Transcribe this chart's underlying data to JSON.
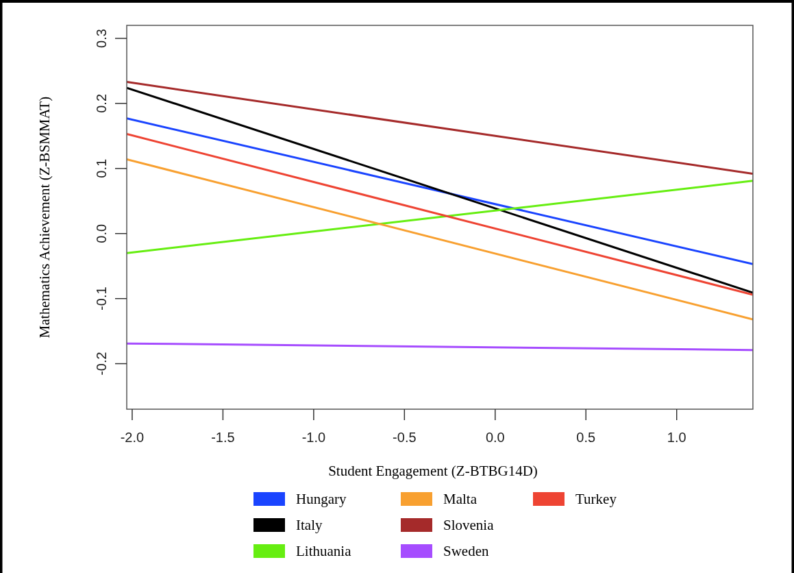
{
  "chart_data": {
    "type": "line",
    "xlabel": "Student Engagement (Z-BTBG14D)",
    "ylabel": "Mathematics Achievement (Z-BSMMAT)",
    "x": [
      -2.03,
      1.42
    ],
    "xlim": [
      -2.03,
      1.42
    ],
    "xticks": [
      {
        "value": -2,
        "label": "-2.0"
      },
      -1.5,
      {
        "value": -1,
        "label": "-1.0"
      },
      -0.5,
      {
        "value": 0,
        "label": "0.0"
      },
      0.5,
      {
        "value": 1,
        "label": "1.0"
      }
    ],
    "ylim": [
      -0.27,
      0.32
    ],
    "yticks": [
      -0.2,
      -0.1,
      {
        "value": 0,
        "label": "0.0"
      },
      0.1,
      0.2,
      0.3
    ],
    "series": [
      {
        "name": "Hungary",
        "color": "#1a44ff",
        "values": [
          0.177,
          -0.047
        ]
      },
      {
        "name": "Italy",
        "color": "#000000",
        "values": [
          0.224,
          -0.091
        ]
      },
      {
        "name": "Lithuania",
        "color": "#66ee11",
        "values": [
          -0.03,
          0.081
        ]
      },
      {
        "name": "Malta",
        "color": "#f8a030",
        "values": [
          0.114,
          -0.132
        ]
      },
      {
        "name": "Slovenia",
        "color": "#a52a2a",
        "values": [
          0.233,
          0.092
        ]
      },
      {
        "name": "Sweden",
        "color": "#a64dff",
        "values": [
          -0.169,
          -0.179
        ]
      },
      {
        "name": "Turkey",
        "color": "#ee4433",
        "values": [
          0.153,
          -0.094
        ]
      }
    ],
    "legend": "bottom",
    "grid": false,
    "marker": "none",
    "line_style": "solid"
  }
}
